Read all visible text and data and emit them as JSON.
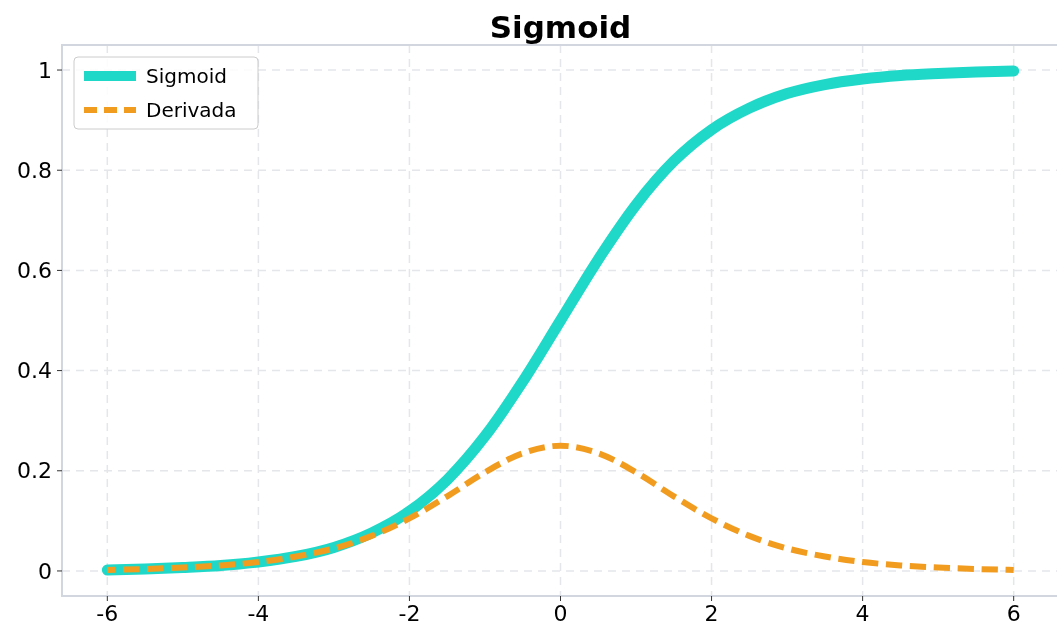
{
  "chart_data": {
    "type": "line",
    "title": "Sigmoid",
    "x": [
      -6,
      -5.5,
      -5,
      -4.5,
      -4,
      -3.5,
      -3,
      -2.5,
      -2,
      -1.5,
      -1,
      -0.5,
      0,
      0.5,
      1,
      1.5,
      2,
      2.5,
      3,
      3.5,
      4,
      4.5,
      5,
      5.5,
      6
    ],
    "series": [
      {
        "name": "Sigmoid",
        "color": "#1fd8c8",
        "line_style": "solid",
        "values": [
          0.002,
          0.004,
          0.007,
          0.011,
          0.018,
          0.029,
          0.047,
          0.076,
          0.119,
          0.182,
          0.269,
          0.378,
          0.5,
          0.622,
          0.731,
          0.818,
          0.881,
          0.924,
          0.953,
          0.971,
          0.982,
          0.989,
          0.993,
          0.996,
          0.998
        ]
      },
      {
        "name": "Derivada",
        "color": "#f29c1f",
        "line_style": "dashed",
        "values": [
          0.002,
          0.004,
          0.007,
          0.011,
          0.018,
          0.029,
          0.045,
          0.07,
          0.105,
          0.149,
          0.197,
          0.235,
          0.25,
          0.235,
          0.197,
          0.149,
          0.105,
          0.07,
          0.045,
          0.029,
          0.018,
          0.011,
          0.007,
          0.004,
          0.002
        ]
      }
    ],
    "xlim": [
      -6.6,
      6.6
    ],
    "xticks": [
      -6,
      -4,
      -2,
      0,
      2,
      4,
      6
    ],
    "ylim": [
      -0.05,
      1.05
    ],
    "yticks": [
      0,
      0.2,
      0.4,
      0.6,
      0.8,
      1
    ],
    "grid": true,
    "legend": "top left"
  }
}
